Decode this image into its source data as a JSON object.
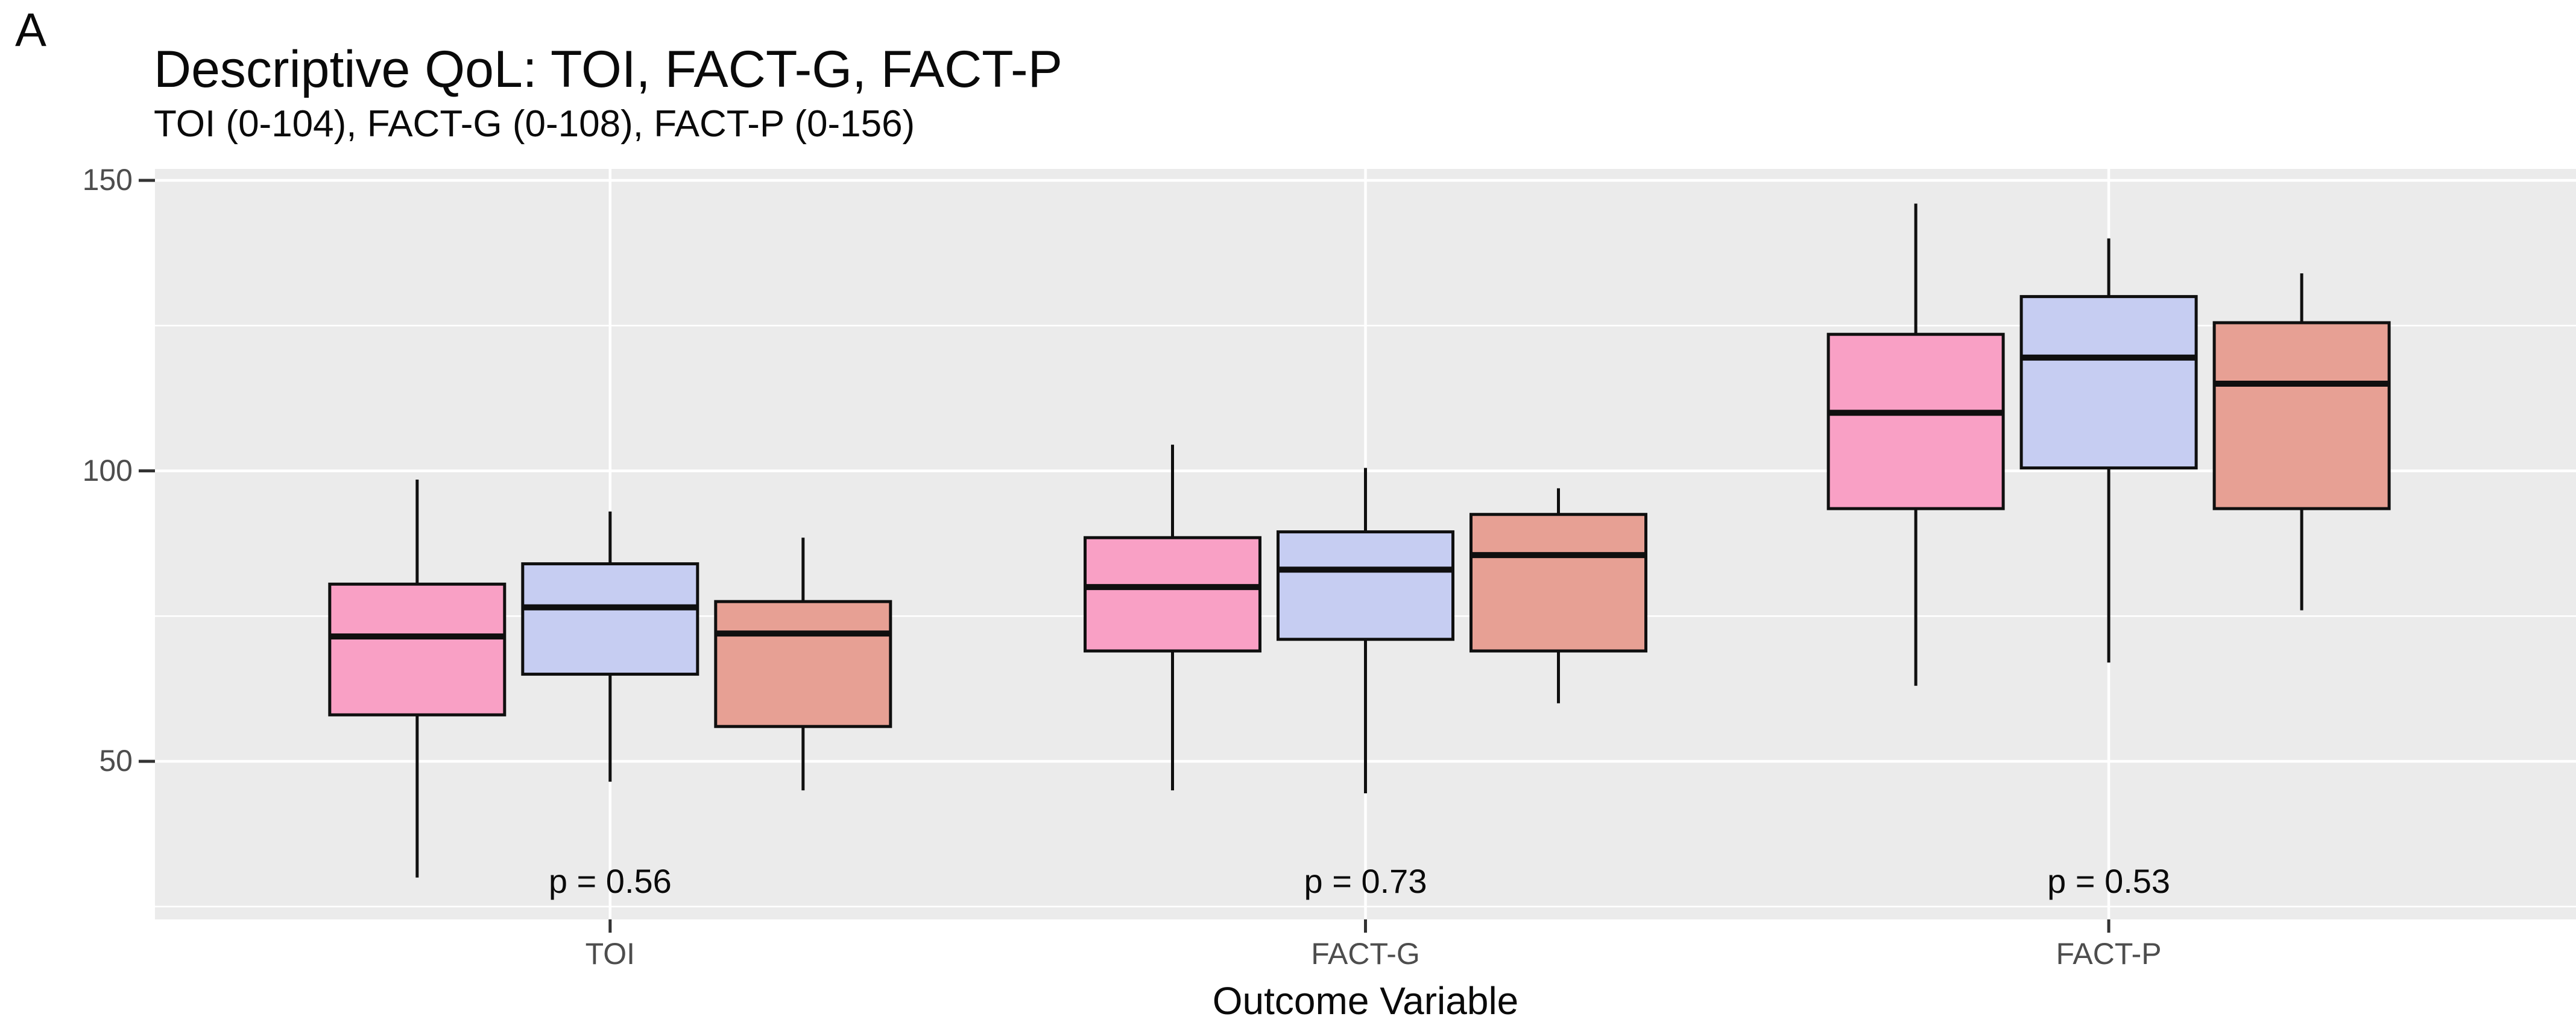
{
  "figure": {
    "panel_label": "A",
    "title": "Descriptive QoL: TOI, FACT-G, FACT-P",
    "subtitle": "TOI (0-104), FACT-G (0-108), FACT-P (0-156)"
  },
  "chart_data": {
    "type": "boxplot",
    "title": "Descriptive QoL: TOI, FACT-G, FACT-P",
    "subtitle": "TOI (0-104), FACT-G (0-108), FACT-P (0-156)",
    "xlabel": "Outcome Variable",
    "ylabel": "",
    "categories": [
      "TOI",
      "FACT-G",
      "FACT-P"
    ],
    "p_value_labels": [
      "p = 0.56",
      "p = 0.73",
      "p = 0.53"
    ],
    "y_ticks": [
      150,
      100,
      50
    ],
    "y_minor_gridlines": [
      125,
      75,
      25
    ],
    "ylim": [
      22.8,
      152
    ],
    "grid": true,
    "legend": "none",
    "series": [
      {
        "name": "arm-pink",
        "color": "#F9A0C5",
        "boxes": [
          {
            "category": "TOI",
            "min": 30,
            "q1": 58,
            "median": 71.5,
            "q3": 80.5,
            "max": 98.5
          },
          {
            "category": "FACT-G",
            "min": 45,
            "q1": 69,
            "median": 80,
            "q3": 88.5,
            "max": 104.5
          },
          {
            "category": "FACT-P",
            "min": 63,
            "q1": 93.5,
            "median": 110,
            "q3": 123.5,
            "max": 146
          }
        ]
      },
      {
        "name": "arm-periwinkle",
        "color": "#C6CDF2",
        "boxes": [
          {
            "category": "TOI",
            "min": 46.5,
            "q1": 65,
            "median": 76.5,
            "q3": 84,
            "max": 93
          },
          {
            "category": "FACT-G",
            "min": 44.5,
            "q1": 71,
            "median": 83,
            "q3": 89.5,
            "max": 100.5
          },
          {
            "category": "FACT-P",
            "min": 67,
            "q1": 100.5,
            "median": 119.5,
            "q3": 130,
            "max": 140
          }
        ]
      },
      {
        "name": "arm-salmon",
        "color": "#E7A094",
        "boxes": [
          {
            "category": "TOI",
            "min": 45,
            "q1": 56,
            "median": 72,
            "q3": 77.5,
            "max": 88.5
          },
          {
            "category": "FACT-G",
            "min": 60,
            "q1": 69,
            "median": 85.5,
            "q3": 92.5,
            "max": 97
          },
          {
            "category": "FACT-P",
            "min": 76,
            "q1": 93.5,
            "median": 115,
            "q3": 125.5,
            "max": 134
          }
        ]
      }
    ],
    "colors": {
      "panel_bg": "#EBEBEB",
      "grid": "#FFFFFF",
      "box_border": "#0F0F0F",
      "tick_mark": "#333333",
      "tick_text": "#4D4D4D",
      "text": "#0A0A0A"
    }
  }
}
